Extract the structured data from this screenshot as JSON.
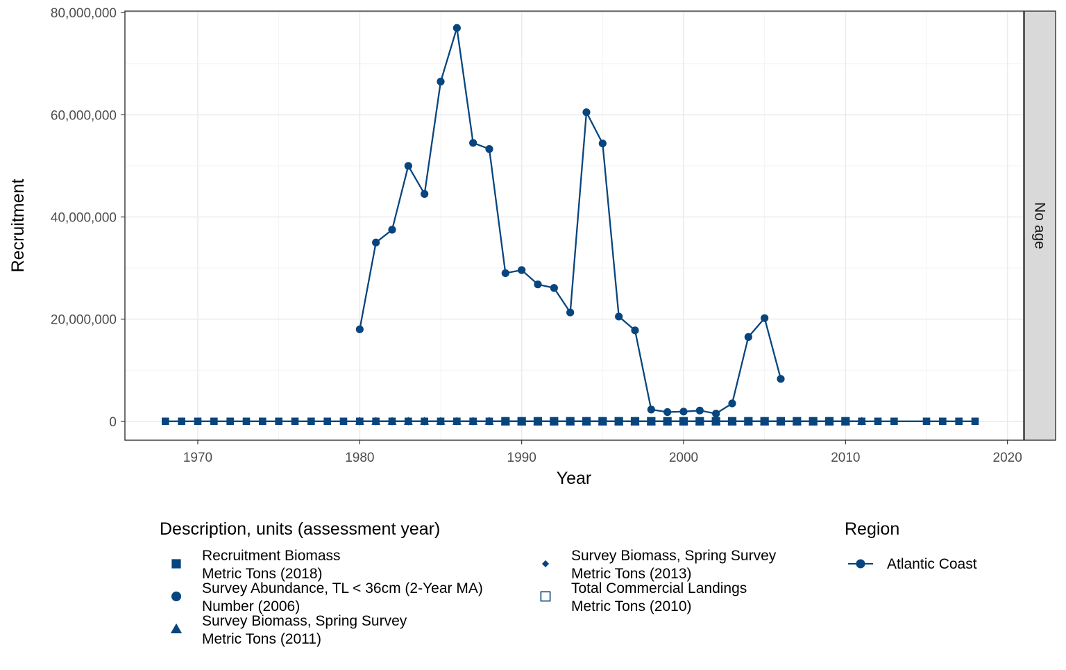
{
  "chart_data": {
    "type": "line",
    "xlabel": "Year",
    "ylabel": "Recruitment",
    "xlim": [
      1965.5,
      2021
    ],
    "ylim": [
      -3700000,
      80300000
    ],
    "x_ticks": [
      1970,
      1980,
      1990,
      2000,
      2010,
      2020
    ],
    "x_tick_labels": [
      "1970",
      "1980",
      "1990",
      "2000",
      "2010",
      "2020"
    ],
    "y_ticks": [
      0,
      20000000,
      40000000,
      60000000,
      80000000
    ],
    "y_tick_labels": [
      "0",
      "20,000,000",
      "40,000,000",
      "60,000,000",
      "80,000,000"
    ],
    "facet_label": "No age",
    "grid": true,
    "color": "#08457e",
    "series": [
      {
        "name": "Survey Abundance, TL < 36cm (2-Year MA) Number (2006)",
        "region": "Atlantic Coast",
        "shape": "circle",
        "x": [
          1980,
          1981,
          1982,
          1983,
          1984,
          1985,
          1986,
          1987,
          1988,
          1989,
          1990,
          1991,
          1992,
          1993,
          1994,
          1995,
          1996,
          1997,
          1998,
          1999,
          2000,
          2001,
          2002,
          2003,
          2004,
          2005,
          2006
        ],
        "y": [
          18000000,
          35000000,
          37500000,
          50000000,
          44500000,
          66500000,
          77000000,
          54500000,
          53300000,
          29000000,
          29600000,
          26800000,
          26100000,
          21300000,
          60500000,
          54400000,
          20500000,
          17800000,
          2300000,
          1800000,
          1900000,
          2100000,
          1500000,
          3500000,
          16500000,
          20200000,
          8300000
        ]
      },
      {
        "name": "Recruitment Biomass Metric Tons (2018)",
        "region": "Atlantic Coast",
        "shape": "square",
        "x": [
          1968,
          1969,
          1970,
          1971,
          1972,
          1973,
          1974,
          1975,
          1976,
          1977,
          1978,
          1979,
          1980,
          1981,
          1982,
          1983,
          1984,
          1985,
          1986,
          1987,
          1988,
          1989,
          1990,
          1991,
          1992,
          1993,
          1994,
          1995,
          1996,
          1997,
          1998,
          1999,
          2000,
          2001,
          2002,
          2003,
          2004,
          2005,
          2006,
          2007,
          2008,
          2009,
          2010,
          2011,
          2012,
          2013,
          2015,
          2016,
          2017,
          2018
        ],
        "y": [
          0,
          0,
          0,
          0,
          0,
          0,
          0,
          0,
          0,
          0,
          0,
          0,
          0,
          0,
          0,
          0,
          0,
          0,
          0,
          0,
          0,
          0,
          0,
          0,
          0,
          0,
          0,
          0,
          0,
          0,
          0,
          0,
          0,
          0,
          0,
          0,
          0,
          0,
          0,
          0,
          0,
          0,
          0,
          0,
          0,
          0,
          0,
          0,
          0,
          0
        ]
      },
      {
        "name": "Survey Biomass, Spring Survey Metric Tons (2011)",
        "region": "Atlantic Coast",
        "shape": "triangle",
        "x": [
          1980,
          1981,
          1982,
          1983,
          1984,
          1985,
          1986,
          1987,
          1988,
          1989,
          1990,
          1991,
          1992,
          1993,
          1994,
          1995,
          1996,
          1997,
          1998,
          1999,
          2000,
          2001,
          2002,
          2003,
          2004,
          2005,
          2006,
          2007,
          2008,
          2009,
          2010,
          2011
        ],
        "y": [
          0,
          0,
          0,
          0,
          0,
          0,
          0,
          0,
          0,
          0,
          0,
          0,
          0,
          0,
          0,
          0,
          0,
          0,
          0,
          0,
          0,
          0,
          0,
          0,
          0,
          0,
          0,
          0,
          0,
          0,
          0,
          0
        ]
      },
      {
        "name": "Survey Biomass, Spring Survey Metric Tons (2013)",
        "region": "Atlantic Coast",
        "shape": "diamond",
        "x": [
          1980,
          1981,
          1982,
          1983,
          1984,
          1985,
          1986,
          1987,
          1988,
          1989,
          1990,
          1991,
          1992,
          1993,
          1994,
          1995,
          1996,
          1997,
          1998,
          1999,
          2000,
          2001,
          2002,
          2003,
          2004,
          2005,
          2006,
          2007,
          2008,
          2009,
          2010,
          2011
        ],
        "y": [
          0,
          0,
          0,
          0,
          0,
          0,
          0,
          0,
          0,
          0,
          0,
          0,
          0,
          0,
          0,
          0,
          0,
          0,
          0,
          0,
          0,
          0,
          0,
          0,
          0,
          0,
          0,
          0,
          0,
          0,
          0,
          0
        ]
      },
      {
        "name": "Total Commercial Landings Metric Tons (2010)",
        "region": "Atlantic Coast",
        "shape": "open-square",
        "x": [
          1989,
          1990,
          1991,
          1992,
          1993,
          1994,
          1995,
          1996,
          1997,
          1998,
          1999,
          2000,
          2001,
          2002,
          2003,
          2004,
          2005,
          2006,
          2007,
          2008,
          2009,
          2010
        ],
        "y": [
          0,
          0,
          0,
          0,
          0,
          0,
          0,
          0,
          0,
          0,
          0,
          0,
          0,
          0,
          0,
          0,
          0,
          0,
          0,
          0,
          0,
          0
        ]
      }
    ],
    "legend": {
      "shape_title": "Description, units (assessment year)",
      "shape_items": [
        {
          "shape": "square",
          "line1": "Recruitment Biomass",
          "line2": "Metric Tons (2018)"
        },
        {
          "shape": "circle",
          "line1": "Survey Abundance, TL < 36cm (2-Year MA)",
          "line2": "Number (2006)"
        },
        {
          "shape": "triangle",
          "line1": "Survey Biomass, Spring Survey",
          "line2": "Metric Tons (2011)"
        },
        {
          "shape": "diamond",
          "line1": "Survey Biomass, Spring Survey",
          "line2": "Metric Tons (2013)"
        },
        {
          "shape": "open-square",
          "line1": "Total Commercial Landings",
          "line2": "Metric Tons (2010)"
        }
      ],
      "color_title": "Region",
      "color_items": [
        {
          "label": "Atlantic Coast",
          "color": "#08457e"
        }
      ],
      "placement": "bottom"
    }
  }
}
